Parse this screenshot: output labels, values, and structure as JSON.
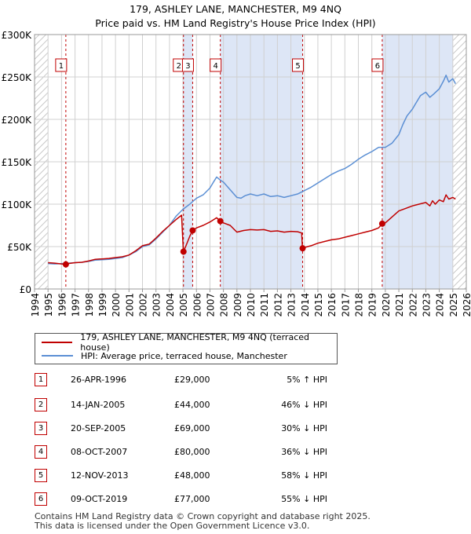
{
  "title_line1": "179, ASHLEY LANE, MANCHESTER, M9 4NQ",
  "title_line2": "Price paid vs. HM Land Registry's House Price Index (HPI)",
  "colors": {
    "property": "#c00000",
    "hpi": "#5b8fd4",
    "shade": "#dde6f6",
    "grid": "#d0d0d0"
  },
  "chart_data": {
    "type": "line",
    "xlim": [
      1994,
      2026
    ],
    "ylim": [
      0,
      300000
    ],
    "y_ticks": [
      {
        "value": 0,
        "label": "£0"
      },
      {
        "value": 50000,
        "label": "£50K"
      },
      {
        "value": 100000,
        "label": "£100K"
      },
      {
        "value": 150000,
        "label": "£150K"
      },
      {
        "value": 200000,
        "label": "£200K"
      },
      {
        "value": 250000,
        "label": "£250K"
      },
      {
        "value": 300000,
        "label": "£300K"
      }
    ],
    "x_ticks": [
      "1994",
      "1995",
      "1996",
      "1997",
      "1998",
      "1999",
      "2000",
      "2001",
      "2002",
      "2003",
      "2004",
      "2005",
      "2006",
      "2007",
      "2008",
      "2009",
      "2010",
      "2011",
      "2012",
      "2013",
      "2014",
      "2015",
      "2016",
      "2017",
      "2018",
      "2019",
      "2020",
      "2021",
      "2022",
      "2023",
      "2024",
      "2025",
      "2026"
    ],
    "hatched_ranges": [
      [
        1994,
        1995.0
      ],
      [
        2025.0,
        2026
      ]
    ],
    "series": [
      {
        "name": "179, ASHLEY LANE, MANCHESTER, M9 4NQ (terraced house)",
        "x": [
          1995.0,
          1995.5,
          1996.0,
          1996.32,
          1996.5,
          1997.0,
          1997.5,
          1998.0,
          1998.5,
          1999.0,
          1999.5,
          2000.0,
          2000.5,
          2001.0,
          2001.5,
          2002.0,
          2002.5,
          2003.0,
          2003.5,
          2004.0,
          2004.5,
          2004.9,
          2005.03,
          2005.2,
          2005.5,
          2005.72,
          2006.0,
          2006.5,
          2007.0,
          2007.5,
          2007.77,
          2008.0,
          2008.5,
          2009.0,
          2009.5,
          2010.0,
          2010.5,
          2011.0,
          2011.5,
          2012.0,
          2012.5,
          2013.0,
          2013.5,
          2013.8,
          2013.86,
          2014.0,
          2014.5,
          2015.0,
          2015.5,
          2016.0,
          2016.5,
          2017.0,
          2017.5,
          2018.0,
          2018.5,
          2019.0,
          2019.5,
          2019.77,
          2020.0,
          2020.5,
          2021.0,
          2021.5,
          2022.0,
          2022.5,
          2023.0,
          2023.3,
          2023.5,
          2023.7,
          2024.0,
          2024.3,
          2024.5,
          2024.7,
          2025.0,
          2025.2
        ],
        "values": [
          31000,
          30500,
          29500,
          29000,
          30000,
          31000,
          31500,
          33000,
          35000,
          35500,
          36000,
          37000,
          38000,
          40000,
          45000,
          51000,
          53000,
          60000,
          68000,
          75000,
          82000,
          87000,
          44000,
          50000,
          62000,
          69000,
          72000,
          75000,
          79000,
          84000,
          80000,
          78000,
          75000,
          67000,
          69000,
          70000,
          69500,
          70000,
          68000,
          68500,
          67000,
          68000,
          67500,
          66000,
          48000,
          49000,
          51000,
          54000,
          56000,
          58000,
          59000,
          61000,
          63000,
          65000,
          67000,
          69000,
          72000,
          77000,
          78000,
          85000,
          92000,
          95000,
          98000,
          100000,
          102000,
          98000,
          104000,
          100000,
          105000,
          103000,
          111000,
          106000,
          108000,
          106000
        ]
      },
      {
        "name": "HPI: Average price, terraced house, Manchester",
        "x": [
          1995.0,
          1995.5,
          1996.0,
          1996.5,
          1997.0,
          1997.5,
          1998.0,
          1998.5,
          1999.0,
          1999.5,
          2000.0,
          2000.5,
          2001.0,
          2001.5,
          2002.0,
          2002.5,
          2003.0,
          2003.5,
          2004.0,
          2004.5,
          2005.0,
          2005.5,
          2006.0,
          2006.5,
          2007.0,
          2007.3,
          2007.5,
          2007.8,
          2008.0,
          2008.5,
          2009.0,
          2009.3,
          2009.6,
          2010.0,
          2010.5,
          2011.0,
          2011.5,
          2012.0,
          2012.5,
          2013.0,
          2013.5,
          2014.0,
          2014.5,
          2015.0,
          2015.5,
          2016.0,
          2016.5,
          2017.0,
          2017.5,
          2018.0,
          2018.5,
          2019.0,
          2019.5,
          2020.0,
          2020.5,
          2021.0,
          2021.3,
          2021.6,
          2022.0,
          2022.3,
          2022.6,
          2023.0,
          2023.3,
          2023.6,
          2024.0,
          2024.3,
          2024.5,
          2024.7,
          2025.0,
          2025.2
        ],
        "values": [
          30000,
          29500,
          30000,
          30500,
          31000,
          31500,
          32500,
          34000,
          34500,
          35000,
          36000,
          37000,
          40000,
          44000,
          50000,
          52000,
          59000,
          67000,
          75000,
          86000,
          94000,
          100000,
          107000,
          111000,
          119000,
          127000,
          132000,
          128000,
          126000,
          117000,
          108000,
          107000,
          110000,
          112000,
          110000,
          112000,
          109000,
          110000,
          108000,
          110000,
          112000,
          116000,
          120000,
          125000,
          130000,
          135000,
          139000,
          142000,
          147000,
          153000,
          158000,
          162000,
          167000,
          167000,
          172000,
          182000,
          194000,
          204000,
          212000,
          220000,
          228000,
          232000,
          226000,
          230000,
          236000,
          245000,
          252000,
          244000,
          248000,
          242000
        ]
      }
    ],
    "sales": [
      {
        "id": "1",
        "x": 1996.32,
        "y": 29000
      },
      {
        "id": "2",
        "x": 2005.04,
        "y": 44000
      },
      {
        "id": "3",
        "x": 2005.72,
        "y": 69000
      },
      {
        "id": "4",
        "x": 2007.77,
        "y": 80000
      },
      {
        "id": "5",
        "x": 2013.87,
        "y": 48000
      },
      {
        "id": "6",
        "x": 2019.77,
        "y": 77000
      }
    ],
    "shaded_ranges": [
      [
        2005.04,
        2005.72
      ],
      [
        2007.77,
        2013.87
      ],
      [
        2019.77,
        2025.0
      ]
    ]
  },
  "legend": {
    "property_label": "179, ASHLEY LANE, MANCHESTER, M9 4NQ (terraced house)",
    "hpi_label": "HPI: Average price, terraced house, Manchester"
  },
  "transactions": [
    {
      "num": "1",
      "date": "26-APR-1996",
      "price": "£29,000",
      "hpi": "5% ↑ HPI"
    },
    {
      "num": "2",
      "date": "14-JAN-2005",
      "price": "£44,000",
      "hpi": "46% ↓ HPI"
    },
    {
      "num": "3",
      "date": "20-SEP-2005",
      "price": "£69,000",
      "hpi": "30% ↓ HPI"
    },
    {
      "num": "4",
      "date": "08-OCT-2007",
      "price": "£80,000",
      "hpi": "36% ↓ HPI"
    },
    {
      "num": "5",
      "date": "12-NOV-2013",
      "price": "£48,000",
      "hpi": "58% ↓ HPI"
    },
    {
      "num": "6",
      "date": "09-OCT-2019",
      "price": "£77,000",
      "hpi": "55% ↓ HPI"
    }
  ],
  "footer_line1": "Contains HM Land Registry data © Crown copyright and database right 2025.",
  "footer_line2": "This data is licensed under the Open Government Licence v3.0."
}
